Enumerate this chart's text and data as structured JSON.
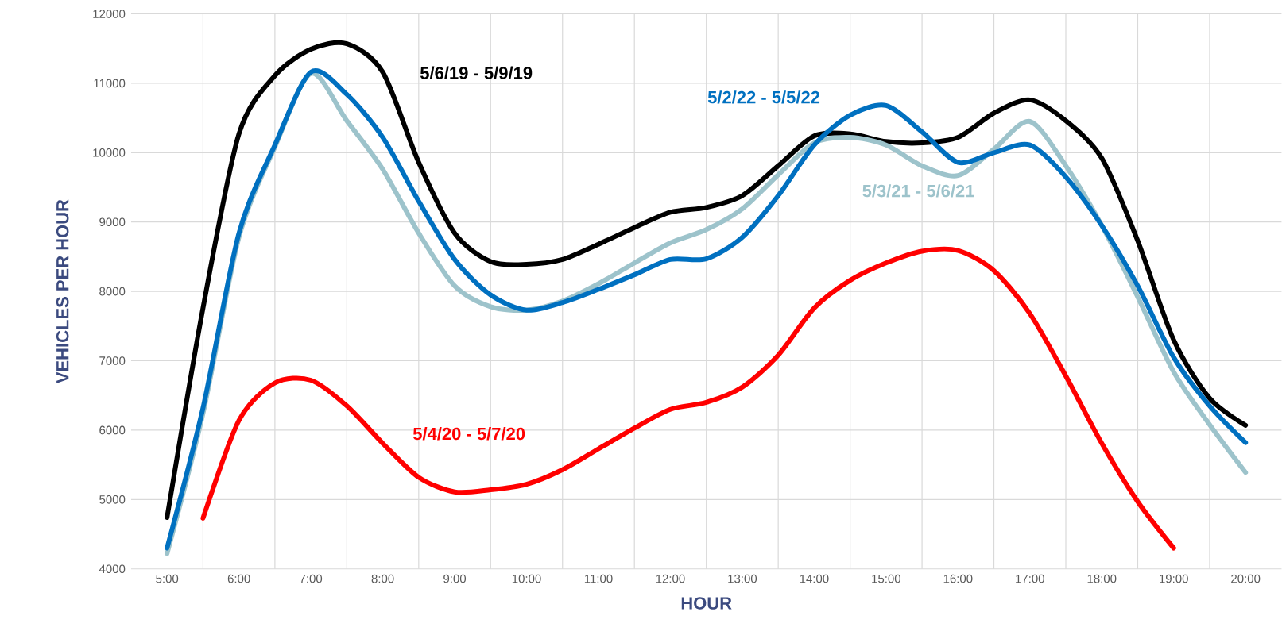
{
  "chart_data": {
    "type": "line",
    "xlabel": "HOUR",
    "ylabel": "VEHICLES PER HOUR",
    "categories": [
      "5:00",
      null,
      "6:00",
      null,
      "7:00",
      null,
      "8:00",
      null,
      "9:00",
      null,
      "10:00",
      null,
      "11:00",
      null,
      "12:00",
      null,
      "13:00",
      null,
      "14:00",
      null,
      "15:00",
      null,
      "16:00",
      null,
      "17:00",
      null,
      "18:00",
      null,
      "19:00",
      null,
      "20:00"
    ],
    "series": [
      {
        "name": "5/6/19 - 5/9/19",
        "color": "#000000",
        "values": [
          4740,
          7760,
          10270,
          11110,
          11490,
          11570,
          11160,
          9860,
          8840,
          8430,
          8390,
          8460,
          8680,
          8920,
          9140,
          9210,
          9380,
          9810,
          10240,
          10270,
          10160,
          10140,
          10220,
          10570,
          10760,
          10460,
          9920,
          8730,
          7300,
          6460,
          6070
        ]
      },
      {
        "name": "5/4/20 - 5/7/20",
        "color": "#ff0000",
        "values": [
          null,
          4730,
          6140,
          6680,
          6720,
          6350,
          5810,
          5320,
          5110,
          5140,
          5220,
          5430,
          5730,
          6030,
          6300,
          6400,
          6620,
          7080,
          7760,
          8160,
          8410,
          8580,
          8590,
          8300,
          7680,
          6780,
          5810,
          4970,
          4300,
          null,
          null
        ]
      },
      {
        "name": "5/3/21 - 5/6/21",
        "color": "#9dc3cb",
        "values": [
          4220,
          6240,
          8780,
          10080,
          11140,
          10460,
          9760,
          8840,
          8080,
          7780,
          7730,
          7860,
          8110,
          8410,
          8700,
          8890,
          9190,
          9680,
          10140,
          10220,
          10110,
          9810,
          9670,
          10050,
          10450,
          9810,
          8950,
          7920,
          6840,
          6080,
          5390
        ]
      },
      {
        "name": "5/2/22 - 5/5/22",
        "color": "#0070c0",
        "values": [
          4300,
          6320,
          8840,
          10110,
          11160,
          10840,
          10220,
          9300,
          8460,
          7950,
          7730,
          7840,
          8030,
          8240,
          8460,
          8470,
          8780,
          9380,
          10110,
          10540,
          10680,
          10300,
          9860,
          10000,
          10110,
          9650,
          8950,
          8080,
          7050,
          6350,
          5820
        ]
      }
    ],
    "ylim": [
      4000,
      12000
    ],
    "yticks": [
      4000,
      5000,
      6000,
      7000,
      8000,
      9000,
      10000,
      11000,
      12000
    ],
    "grid": true
  }
}
